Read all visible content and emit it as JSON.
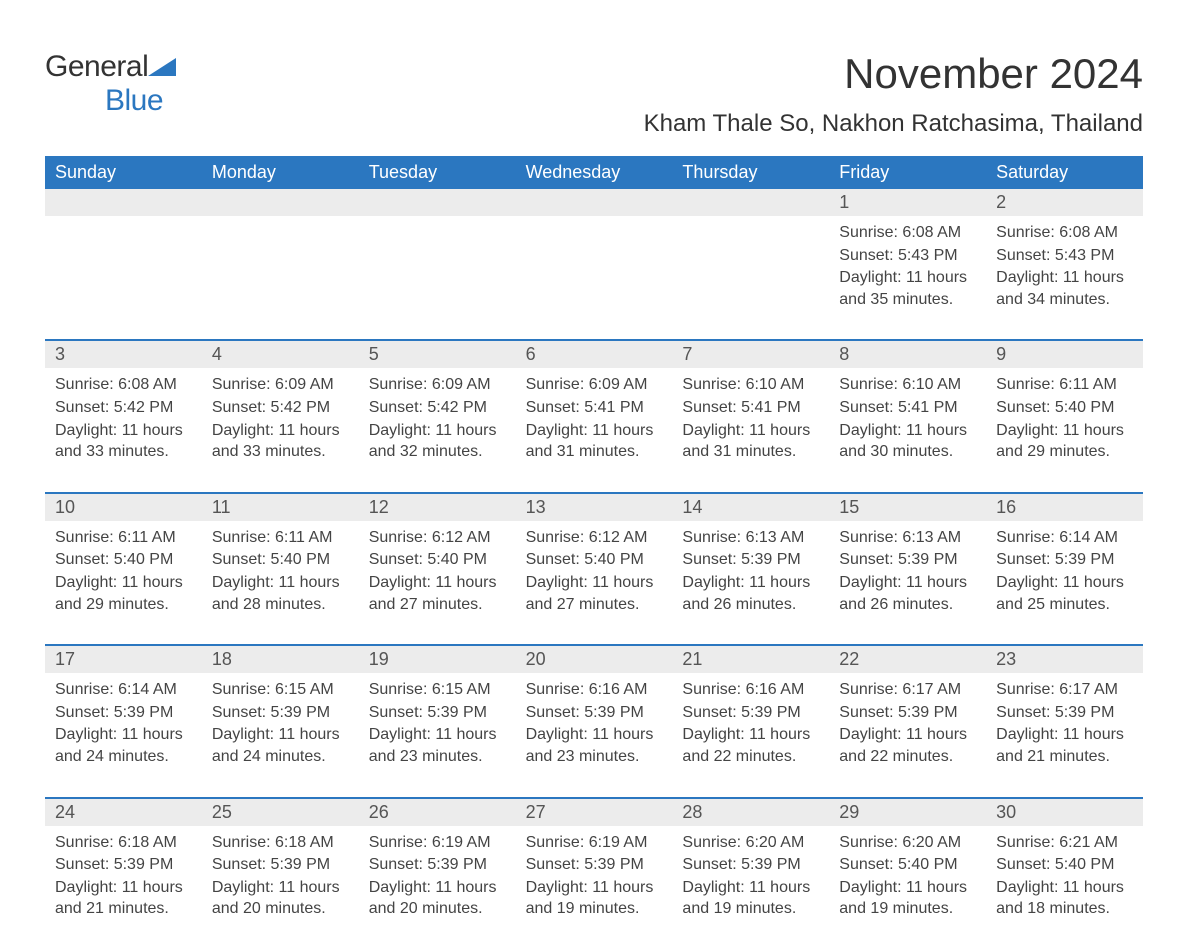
{
  "brand": {
    "text_general": "General",
    "text_blue": "Blue"
  },
  "title": {
    "month_year": "November 2024",
    "location": "Kham Thale So, Nakhon Ratchasima, Thailand"
  },
  "colors": {
    "header_bg": "#2b77c0",
    "header_text": "#ffffff",
    "daynum_bg": "#ececec",
    "row_border": "#2b77c0",
    "body_text": "#444444",
    "page_bg": "#ffffff"
  },
  "weekdays": [
    "Sunday",
    "Monday",
    "Tuesday",
    "Wednesday",
    "Thursday",
    "Friday",
    "Saturday"
  ],
  "weeks": [
    [
      {
        "num": "",
        "sunrise": "",
        "sunset": "",
        "daylight": ""
      },
      {
        "num": "",
        "sunrise": "",
        "sunset": "",
        "daylight": ""
      },
      {
        "num": "",
        "sunrise": "",
        "sunset": "",
        "daylight": ""
      },
      {
        "num": "",
        "sunrise": "",
        "sunset": "",
        "daylight": ""
      },
      {
        "num": "",
        "sunrise": "",
        "sunset": "",
        "daylight": ""
      },
      {
        "num": "1",
        "sunrise": "Sunrise: 6:08 AM",
        "sunset": "Sunset: 5:43 PM",
        "daylight": "Daylight: 11 hours and 35 minutes."
      },
      {
        "num": "2",
        "sunrise": "Sunrise: 6:08 AM",
        "sunset": "Sunset: 5:43 PM",
        "daylight": "Daylight: 11 hours and 34 minutes."
      }
    ],
    [
      {
        "num": "3",
        "sunrise": "Sunrise: 6:08 AM",
        "sunset": "Sunset: 5:42 PM",
        "daylight": "Daylight: 11 hours and 33 minutes."
      },
      {
        "num": "4",
        "sunrise": "Sunrise: 6:09 AM",
        "sunset": "Sunset: 5:42 PM",
        "daylight": "Daylight: 11 hours and 33 minutes."
      },
      {
        "num": "5",
        "sunrise": "Sunrise: 6:09 AM",
        "sunset": "Sunset: 5:42 PM",
        "daylight": "Daylight: 11 hours and 32 minutes."
      },
      {
        "num": "6",
        "sunrise": "Sunrise: 6:09 AM",
        "sunset": "Sunset: 5:41 PM",
        "daylight": "Daylight: 11 hours and 31 minutes."
      },
      {
        "num": "7",
        "sunrise": "Sunrise: 6:10 AM",
        "sunset": "Sunset: 5:41 PM",
        "daylight": "Daylight: 11 hours and 31 minutes."
      },
      {
        "num": "8",
        "sunrise": "Sunrise: 6:10 AM",
        "sunset": "Sunset: 5:41 PM",
        "daylight": "Daylight: 11 hours and 30 minutes."
      },
      {
        "num": "9",
        "sunrise": "Sunrise: 6:11 AM",
        "sunset": "Sunset: 5:40 PM",
        "daylight": "Daylight: 11 hours and 29 minutes."
      }
    ],
    [
      {
        "num": "10",
        "sunrise": "Sunrise: 6:11 AM",
        "sunset": "Sunset: 5:40 PM",
        "daylight": "Daylight: 11 hours and 29 minutes."
      },
      {
        "num": "11",
        "sunrise": "Sunrise: 6:11 AM",
        "sunset": "Sunset: 5:40 PM",
        "daylight": "Daylight: 11 hours and 28 minutes."
      },
      {
        "num": "12",
        "sunrise": "Sunrise: 6:12 AM",
        "sunset": "Sunset: 5:40 PM",
        "daylight": "Daylight: 11 hours and 27 minutes."
      },
      {
        "num": "13",
        "sunrise": "Sunrise: 6:12 AM",
        "sunset": "Sunset: 5:40 PM",
        "daylight": "Daylight: 11 hours and 27 minutes."
      },
      {
        "num": "14",
        "sunrise": "Sunrise: 6:13 AM",
        "sunset": "Sunset: 5:39 PM",
        "daylight": "Daylight: 11 hours and 26 minutes."
      },
      {
        "num": "15",
        "sunrise": "Sunrise: 6:13 AM",
        "sunset": "Sunset: 5:39 PM",
        "daylight": "Daylight: 11 hours and 26 minutes."
      },
      {
        "num": "16",
        "sunrise": "Sunrise: 6:14 AM",
        "sunset": "Sunset: 5:39 PM",
        "daylight": "Daylight: 11 hours and 25 minutes."
      }
    ],
    [
      {
        "num": "17",
        "sunrise": "Sunrise: 6:14 AM",
        "sunset": "Sunset: 5:39 PM",
        "daylight": "Daylight: 11 hours and 24 minutes."
      },
      {
        "num": "18",
        "sunrise": "Sunrise: 6:15 AM",
        "sunset": "Sunset: 5:39 PM",
        "daylight": "Daylight: 11 hours and 24 minutes."
      },
      {
        "num": "19",
        "sunrise": "Sunrise: 6:15 AM",
        "sunset": "Sunset: 5:39 PM",
        "daylight": "Daylight: 11 hours and 23 minutes."
      },
      {
        "num": "20",
        "sunrise": "Sunrise: 6:16 AM",
        "sunset": "Sunset: 5:39 PM",
        "daylight": "Daylight: 11 hours and 23 minutes."
      },
      {
        "num": "21",
        "sunrise": "Sunrise: 6:16 AM",
        "sunset": "Sunset: 5:39 PM",
        "daylight": "Daylight: 11 hours and 22 minutes."
      },
      {
        "num": "22",
        "sunrise": "Sunrise: 6:17 AM",
        "sunset": "Sunset: 5:39 PM",
        "daylight": "Daylight: 11 hours and 22 minutes."
      },
      {
        "num": "23",
        "sunrise": "Sunrise: 6:17 AM",
        "sunset": "Sunset: 5:39 PM",
        "daylight": "Daylight: 11 hours and 21 minutes."
      }
    ],
    [
      {
        "num": "24",
        "sunrise": "Sunrise: 6:18 AM",
        "sunset": "Sunset: 5:39 PM",
        "daylight": "Daylight: 11 hours and 21 minutes."
      },
      {
        "num": "25",
        "sunrise": "Sunrise: 6:18 AM",
        "sunset": "Sunset: 5:39 PM",
        "daylight": "Daylight: 11 hours and 20 minutes."
      },
      {
        "num": "26",
        "sunrise": "Sunrise: 6:19 AM",
        "sunset": "Sunset: 5:39 PM",
        "daylight": "Daylight: 11 hours and 20 minutes."
      },
      {
        "num": "27",
        "sunrise": "Sunrise: 6:19 AM",
        "sunset": "Sunset: 5:39 PM",
        "daylight": "Daylight: 11 hours and 19 minutes."
      },
      {
        "num": "28",
        "sunrise": "Sunrise: 6:20 AM",
        "sunset": "Sunset: 5:39 PM",
        "daylight": "Daylight: 11 hours and 19 minutes."
      },
      {
        "num": "29",
        "sunrise": "Sunrise: 6:20 AM",
        "sunset": "Sunset: 5:40 PM",
        "daylight": "Daylight: 11 hours and 19 minutes."
      },
      {
        "num": "30",
        "sunrise": "Sunrise: 6:21 AM",
        "sunset": "Sunset: 5:40 PM",
        "daylight": "Daylight: 11 hours and 18 minutes."
      }
    ]
  ]
}
